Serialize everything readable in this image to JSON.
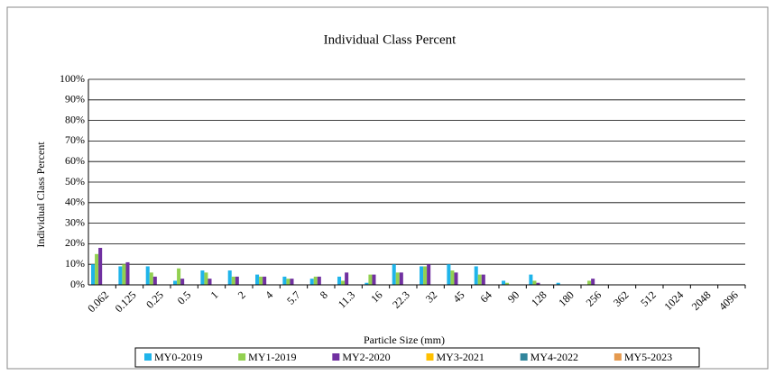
{
  "chart_data": {
    "type": "bar",
    "title": "Individual Class Percent",
    "x_label": "Particle Size (mm)",
    "y_label": "Individual Class Percent",
    "categories": [
      "0.062",
      "0.125",
      "0.25",
      "0.5",
      "1",
      "2",
      "4",
      "5.7",
      "8",
      "11.3",
      "16",
      "22.3",
      "32",
      "45",
      "64",
      "90",
      "128",
      "180",
      "256",
      "362",
      "512",
      "1024",
      "2048",
      "4096"
    ],
    "series": [
      {
        "name": "MY0-2019",
        "color": "#1fb4ea",
        "values": [
          10,
          9,
          9,
          2,
          7,
          7,
          5,
          4,
          3,
          4,
          1,
          10,
          9,
          10,
          9,
          2,
          5,
          1,
          0,
          0,
          0,
          0,
          0,
          0
        ]
      },
      {
        "name": "MY1-2019",
        "color": "#92d050",
        "values": [
          15,
          10,
          6,
          8,
          6,
          4,
          4,
          3,
          4,
          2,
          5,
          6,
          9,
          7,
          5,
          1,
          2,
          0,
          2,
          0,
          0,
          0,
          0,
          0
        ]
      },
      {
        "name": "MY2-2020",
        "color": "#7030a0",
        "values": [
          18,
          11,
          4,
          3,
          3,
          4,
          4,
          3,
          4,
          6,
          5,
          6,
          10,
          6,
          5,
          0,
          1,
          0,
          3,
          0,
          0,
          0,
          0,
          0
        ]
      },
      {
        "name": "MY3-2021",
        "color": "#ffc000",
        "values": [
          null,
          null,
          null,
          null,
          null,
          null,
          null,
          null,
          null,
          null,
          null,
          null,
          null,
          null,
          null,
          null,
          null,
          null,
          null,
          null,
          null,
          null,
          null,
          null
        ]
      },
      {
        "name": "MY4-2022",
        "color": "#31859c",
        "values": [
          null,
          null,
          null,
          null,
          null,
          null,
          null,
          null,
          null,
          null,
          null,
          null,
          null,
          null,
          null,
          null,
          null,
          null,
          null,
          null,
          null,
          null,
          null,
          null
        ]
      },
      {
        "name": "MY5-2023",
        "color": "#e59a4f",
        "values": [
          null,
          null,
          null,
          null,
          null,
          null,
          null,
          null,
          null,
          null,
          null,
          null,
          null,
          null,
          null,
          null,
          null,
          null,
          null,
          null,
          null,
          null,
          null,
          null
        ]
      }
    ],
    "ylim": [
      0,
      100
    ],
    "yticks": [
      {
        "value": 0,
        "label": "0%"
      },
      {
        "value": 10,
        "label": "10%"
      },
      {
        "value": 20,
        "label": "20%"
      },
      {
        "value": 30,
        "label": "30%"
      },
      {
        "value": 40,
        "label": "40%"
      },
      {
        "value": 50,
        "label": "50%"
      },
      {
        "value": 60,
        "label": "60%"
      },
      {
        "value": 70,
        "label": "70%"
      },
      {
        "value": 80,
        "label": "80%"
      },
      {
        "value": 90,
        "label": "90%"
      },
      {
        "value": 100,
        "label": "100%"
      }
    ],
    "grid": true,
    "legend": "bottom"
  }
}
